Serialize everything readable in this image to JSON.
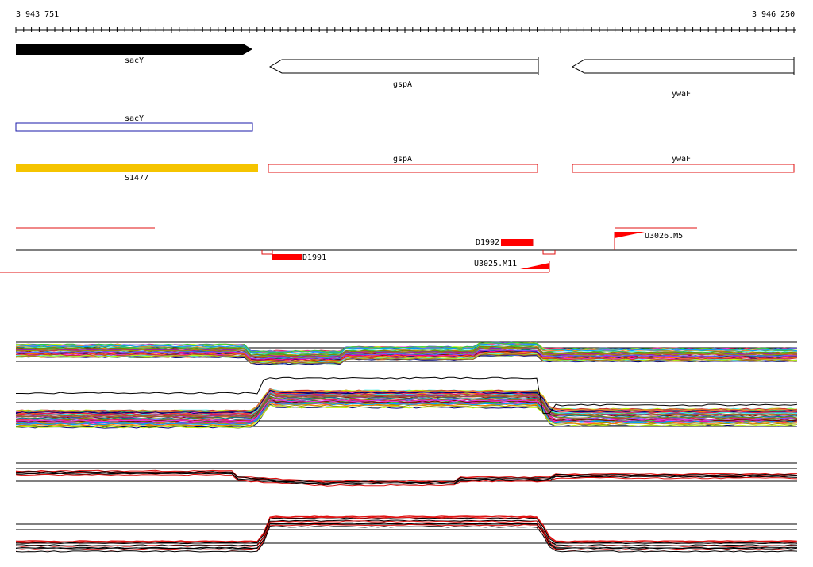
{
  "ruler": {
    "start_label": "3 943 751",
    "end_label": "3 946 250"
  },
  "genes": [
    {
      "name": "sacY",
      "strand": "forward",
      "fill": "#000000"
    },
    {
      "name": "gspA",
      "strand": "reverse",
      "fill": "#ffffff"
    },
    {
      "name": "ywaF",
      "strand": "reverse",
      "fill": "#ffffff"
    }
  ],
  "annotation_tracks": {
    "blue_track": {
      "label": "sacY",
      "color": "#1a1aa8"
    },
    "red_track": [
      {
        "label": "S1477",
        "color": "#f5c400"
      },
      {
        "label": "gspA",
        "color": "#e01010"
      },
      {
        "label": "ywaF",
        "color": "#e01010"
      }
    ]
  },
  "features": {
    "d1991": "D1991",
    "d1992": "D1992",
    "u3025": "U3025.M11",
    "u3026": "U3026.M5"
  },
  "colors": {
    "marker": "#ff0000",
    "track_line": "#000000",
    "accent_yellow": "#f5c400",
    "blue_outline": "#1a1aa8",
    "red_outline": "#e01010"
  }
}
